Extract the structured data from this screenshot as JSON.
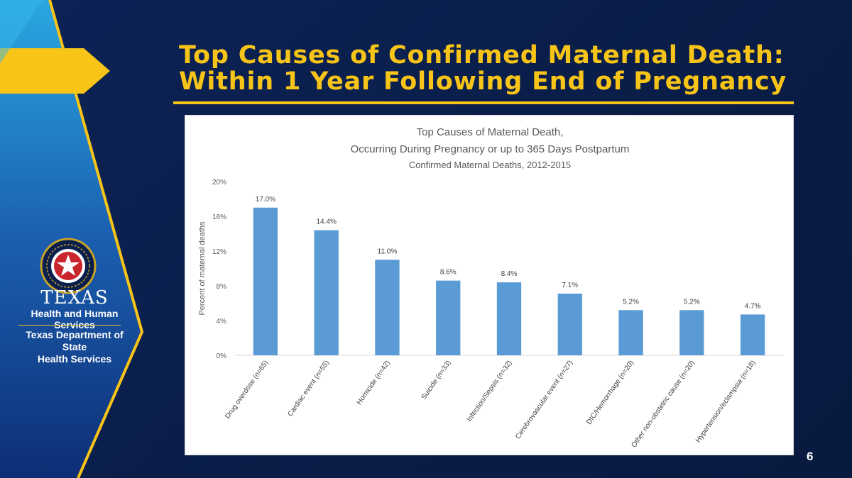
{
  "slide": {
    "title_line1": "Top Causes of Confirmed Maternal Death:",
    "title_line2": "Within 1 Year Following End of Pregnancy",
    "page_number": "6"
  },
  "logo": {
    "texas": "TEXAS",
    "hhs": "Health and Human Services",
    "dshs_line1": "Texas Department of State",
    "dshs_line2": "Health Services"
  },
  "colors": {
    "background": "#0b1f4d",
    "accent": "#f7c417",
    "bar": "#5b9bd5",
    "light_blue": "#2aa7e0"
  },
  "chart_data": {
    "type": "bar",
    "title_line1": "Top Causes of Maternal Death,",
    "title_line2": "Occurring During Pregnancy or up to 365 Days Postpartum",
    "subtitle": "Confirmed Maternal Deaths, 2012-2015",
    "ylabel": "Percent of maternal deaths",
    "xlabel": "",
    "ylim": [
      0,
      20
    ],
    "yticks": [
      "0%",
      "4%",
      "8%",
      "12%",
      "16%",
      "20%"
    ],
    "grid": false,
    "categories": [
      "Drug overdose (n=65)",
      "Cardiac event (n=55)",
      "Homicide (n=42)",
      "Suicide (n=33)",
      "Infection/Sepsis (n=32)",
      "Cerebrovascular event (n=27)",
      "DIC/Hemorrhage (n=20)",
      "Other non-obstetric cause (n=20)",
      "Hypertension/eclampsia (n=18)"
    ],
    "values": [
      17.0,
      14.4,
      11.0,
      8.6,
      8.4,
      7.1,
      5.2,
      5.2,
      4.7
    ],
    "data_labels": [
      "17.0%",
      "14.4%",
      "11.0%",
      "8.6%",
      "8.4%",
      "7.1%",
      "5.2%",
      "5.2%",
      "4.7%"
    ]
  }
}
